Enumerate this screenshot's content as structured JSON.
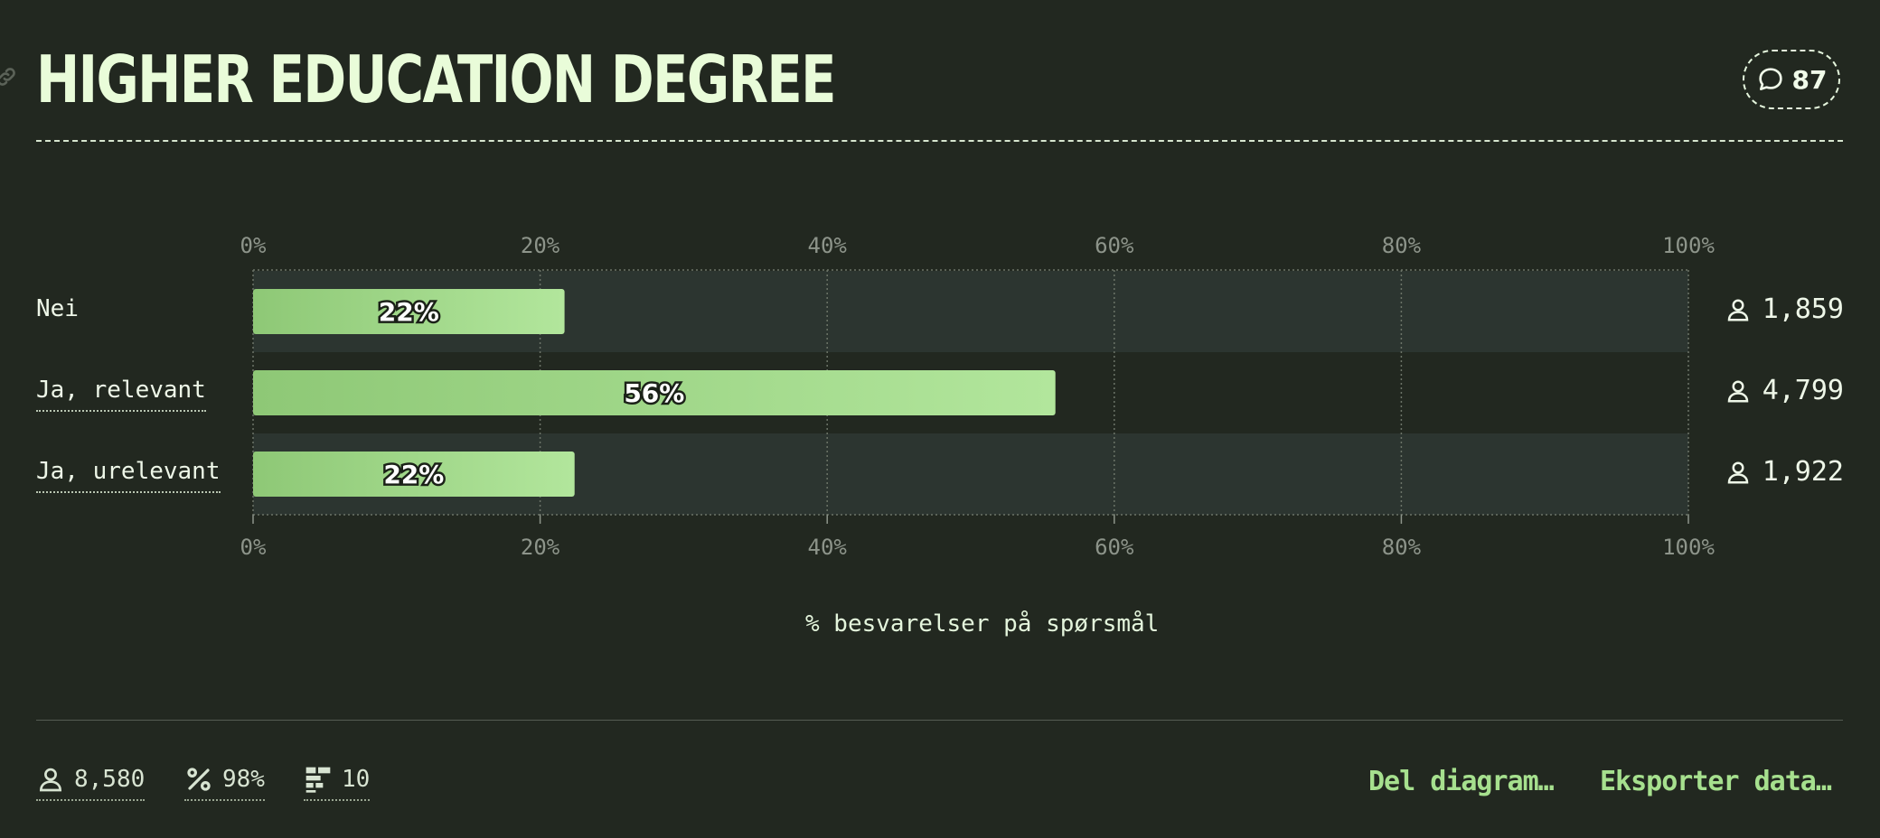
{
  "title": "HIGHER EDUCATION DEGREE",
  "comments": {
    "count": "87",
    "icon": "speech-bubble-icon"
  },
  "chart_data": {
    "type": "bar",
    "orientation": "horizontal",
    "categories": [
      "Nei",
      "Ja, relevant",
      "Ja, urelevant"
    ],
    "values": [
      21.7,
      55.9,
      22.4
    ],
    "value_labels": [
      "22%",
      "56%",
      "22%"
    ],
    "counts": [
      "1,859",
      "4,799",
      "1,922"
    ],
    "xlim": [
      0,
      100
    ],
    "x_ticks": [
      "0%",
      "20%",
      "40%",
      "60%",
      "80%",
      "100%"
    ],
    "xlabel": "% besvarelser på spørsmål",
    "grid": true,
    "bar_color_start": "#8ec876",
    "bar_color_end": "#b2e69c"
  },
  "footer": {
    "respondents": "8,580",
    "response_rate": "98%",
    "questions": "10",
    "share_label": "Del diagram…",
    "export_label": "Eksporter data…"
  },
  "colors": {
    "background": "#222820",
    "accent": "#a6e08e",
    "title": "#e9fcd9"
  }
}
